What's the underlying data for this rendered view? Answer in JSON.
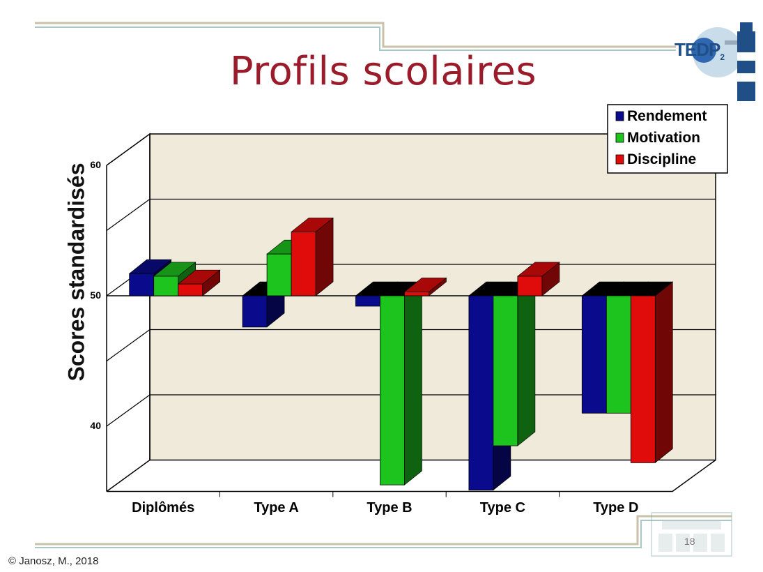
{
  "slide": {
    "title": "Profils scolaires",
    "logo_text": "TEDP",
    "logo_sub": "2",
    "footer": "© Janosz, M., 2018",
    "page_number": "18"
  },
  "chart_data": {
    "type": "bar",
    "categories": [
      "Diplômés",
      "Type A",
      "Type B",
      "Type C",
      "Type D"
    ],
    "series": [
      {
        "name": "Rendement",
        "values": [
          51.7,
          47.6,
          49.2,
          35.1,
          41.0
        ]
      },
      {
        "name": "Motivation",
        "values": [
          51.5,
          53.2,
          35.5,
          38.5,
          41.0
        ]
      },
      {
        "name": "Discipline",
        "values": [
          50.9,
          54.9,
          50.3,
          51.5,
          37.2
        ]
      }
    ],
    "title": "Profils scolaires",
    "xlabel": "",
    "ylabel": "Scores standardisés",
    "yticks": [
      40,
      50,
      60
    ],
    "ylim": [
      35,
      60
    ],
    "baseline": 50,
    "grid": true,
    "legend_position": "top-right",
    "colors": {
      "Rendement": "#0a0a8c",
      "Motivation": "#1ec41e",
      "Discipline": "#e00b0b"
    },
    "plot_background": "#f0eada"
  }
}
